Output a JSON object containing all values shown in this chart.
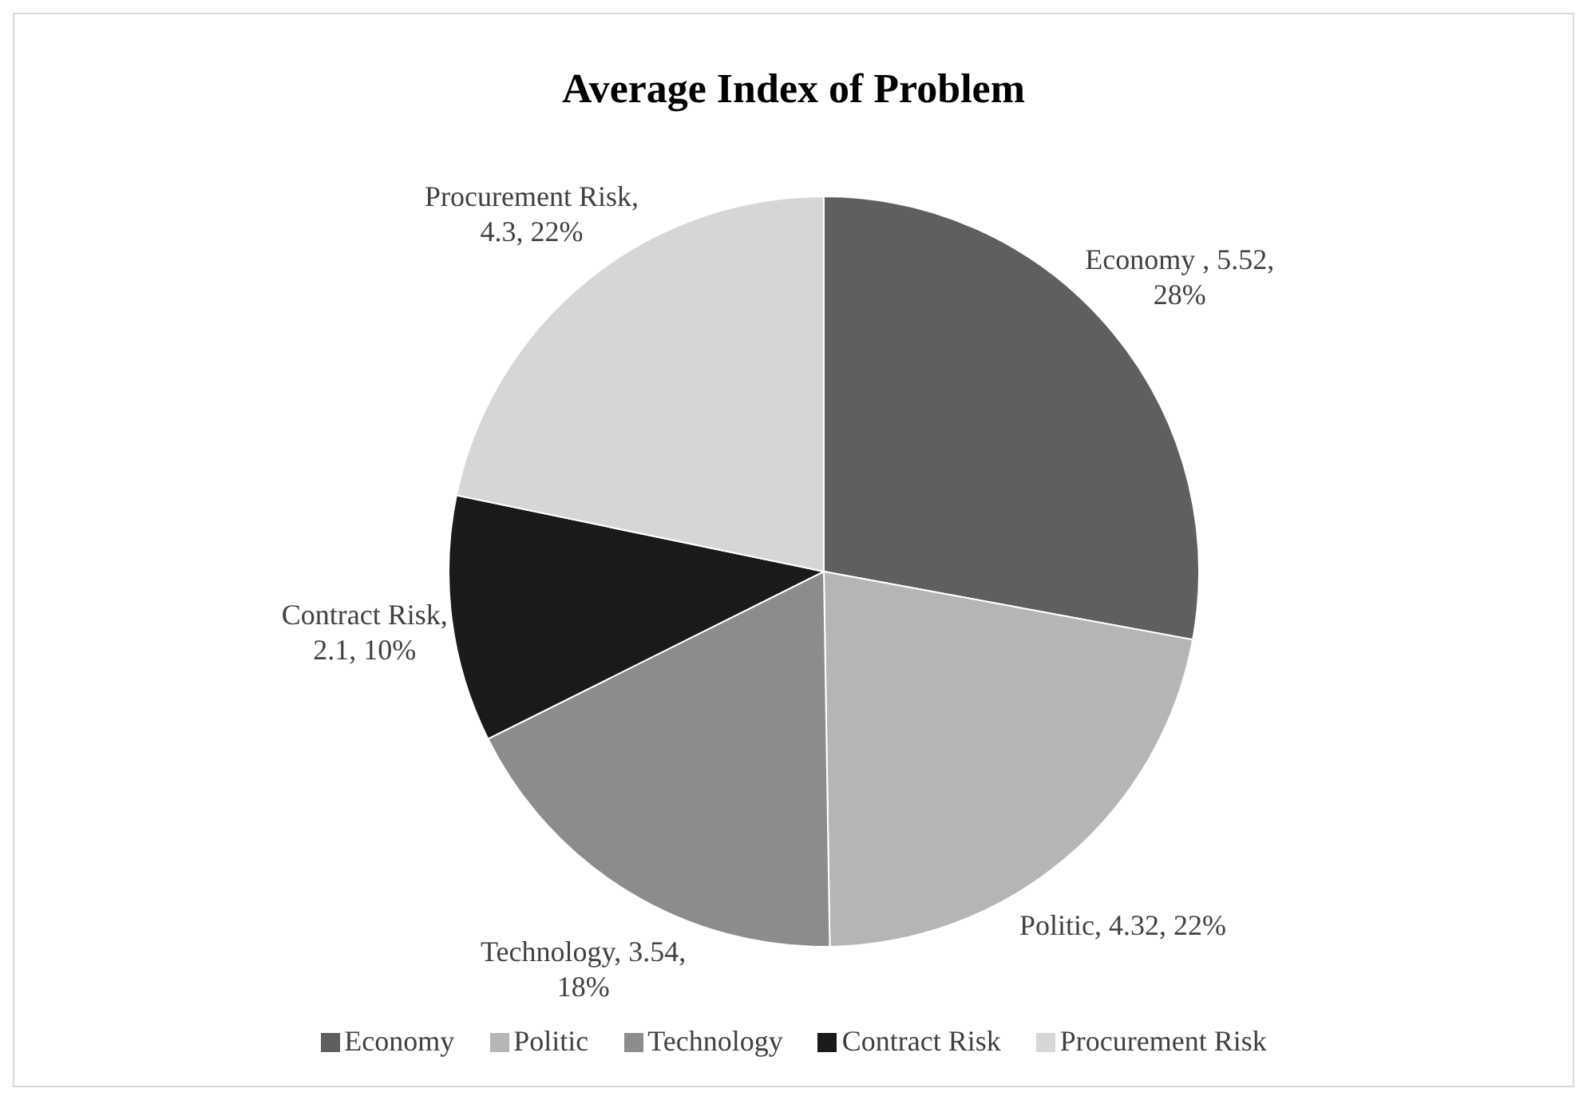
{
  "chart_data": {
    "type": "pie",
    "title": "Average Index of Problem",
    "categories": [
      "Economy",
      "Politic",
      "Technology",
      "Contract Risk",
      "Procurement Risk"
    ],
    "values": [
      5.52,
      4.32,
      3.54,
      2.1,
      4.3
    ],
    "colors": [
      "#5f5f5f",
      "#b5b5b5",
      "#8c8c8c",
      "#1a1a1a",
      "#d6d6d6"
    ],
    "value_labels": [
      "Economy , 5.52, 28%",
      "Politic, 4.32, 22%",
      "Technology, 3.54, 18%",
      "Contract Risk, 2.1, 10%",
      "Procurement Risk, 4.3, 22%"
    ],
    "legend": "bottom"
  }
}
